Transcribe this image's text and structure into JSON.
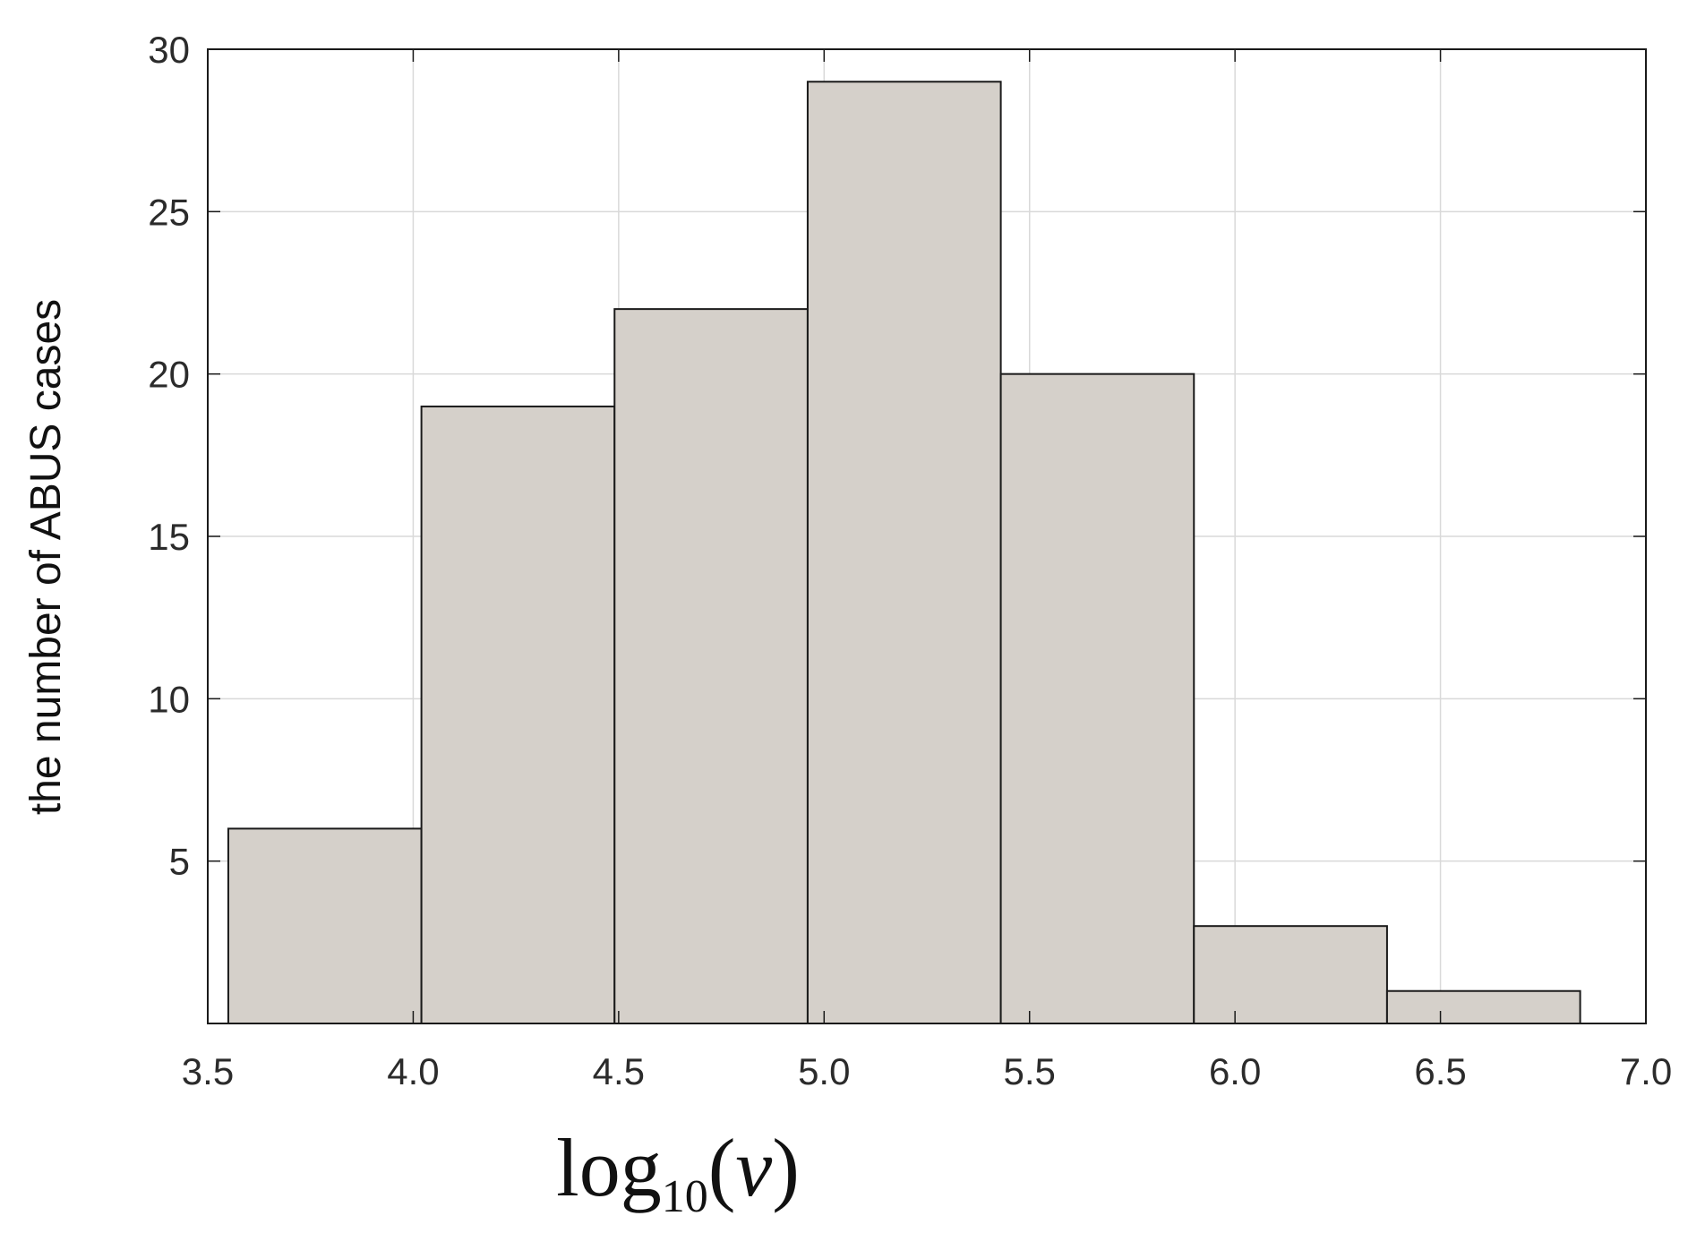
{
  "chart_data": {
    "type": "bar",
    "subtype": "histogram",
    "bins": [
      {
        "x0": 3.55,
        "x1": 4.02,
        "count": 6
      },
      {
        "x0": 4.02,
        "x1": 4.49,
        "count": 19
      },
      {
        "x0": 4.49,
        "x1": 4.96,
        "count": 22
      },
      {
        "x0": 4.96,
        "x1": 5.43,
        "count": 29
      },
      {
        "x0": 5.43,
        "x1": 5.9,
        "count": 20
      },
      {
        "x0": 5.9,
        "x1": 6.37,
        "count": 3
      },
      {
        "x0": 6.37,
        "x1": 6.84,
        "count": 1
      }
    ],
    "xlim": [
      3.5,
      7.0
    ],
    "ylim": [
      0,
      30
    ],
    "xticks": [
      "3.5",
      "4.0",
      "4.5",
      "5.0",
      "5.5",
      "6.0",
      "6.5",
      "7.0"
    ],
    "yticks": [
      "5",
      "10",
      "15",
      "20",
      "25",
      "30"
    ],
    "ylabel": "the number of ABUS cases",
    "xlabel": {
      "base": "log",
      "subscript": "10",
      "argument": "v"
    },
    "grid": true,
    "bar_color": "#d5d0ca",
    "bar_edge_color": "#1a1a1a"
  }
}
